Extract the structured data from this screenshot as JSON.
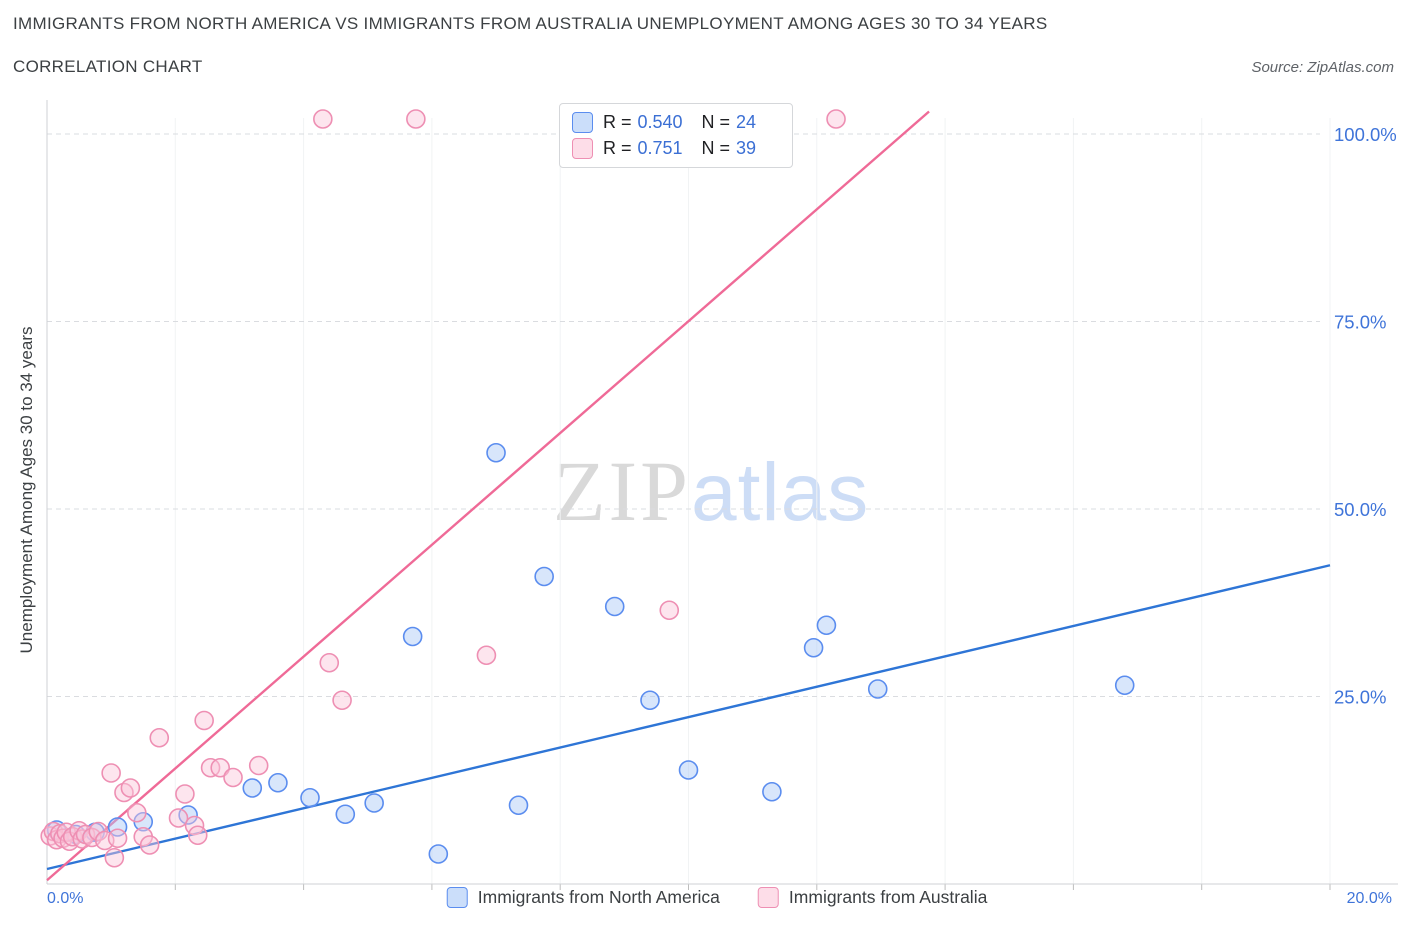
{
  "header": {
    "title_line1": "IMMIGRANTS FROM NORTH AMERICA VS IMMIGRANTS FROM AUSTRALIA UNEMPLOYMENT AMONG AGES 30 TO 34 YEARS",
    "title_line2": "CORRELATION CHART",
    "source": "Source: ZipAtlas.com"
  },
  "watermark": {
    "part1": "ZIP",
    "part2": "atlas"
  },
  "legend_labels": {
    "r": "R =",
    "n": "N ="
  },
  "chart_data": {
    "type": "scatter",
    "title": "Immigrants from North America vs Immigrants from Australia Unemployment Among Ages 30 to 34 years",
    "xlabel": "",
    "ylabel": "Unemployment Among Ages 30 to 34 years",
    "xlim": [
      0,
      20
    ],
    "ylim": [
      0,
      105
    ],
    "grid": "horizontal-dashed",
    "legend_position": "top-center",
    "x_ticks": [
      {
        "value": 0.0,
        "label": "0.0%"
      },
      {
        "value": 20.0,
        "label": "20.0%"
      }
    ],
    "y_ticks": [
      {
        "value": 25,
        "label": "25.0%"
      },
      {
        "value": 50,
        "label": "50.0%"
      },
      {
        "value": 75,
        "label": "75.0%"
      },
      {
        "value": 100,
        "label": "100.0%"
      }
    ],
    "x_minor_step": 2,
    "series": [
      {
        "name": "Immigrants from North America",
        "R": "0.540",
        "N": "24",
        "point_fill": "#a9c8f7",
        "point_stroke": "#5b8def",
        "trend_color": "#2e75d6",
        "trend": {
          "x1": 0,
          "y1": 2.0,
          "x2": 20,
          "y2": 42.5
        },
        "points": [
          [
            0.15,
            7.2
          ],
          [
            0.45,
            6.6
          ],
          [
            0.75,
            6.9
          ],
          [
            1.1,
            7.6
          ],
          [
            1.5,
            8.3
          ],
          [
            2.2,
            9.2
          ],
          [
            3.2,
            12.8
          ],
          [
            3.6,
            13.5
          ],
          [
            4.1,
            11.5
          ],
          [
            4.65,
            9.3
          ],
          [
            5.1,
            10.8
          ],
          [
            5.7,
            33.0
          ],
          [
            6.1,
            4.0
          ],
          [
            7.0,
            57.5
          ],
          [
            7.35,
            10.5
          ],
          [
            7.75,
            41.0
          ],
          [
            8.85,
            37.0
          ],
          [
            9.4,
            24.5
          ],
          [
            10.0,
            15.2
          ],
          [
            11.3,
            12.3
          ],
          [
            11.95,
            31.5
          ],
          [
            12.15,
            34.5
          ],
          [
            12.95,
            26.0
          ],
          [
            16.8,
            26.5
          ]
        ]
      },
      {
        "name": "Immigrants from Australia",
        "R": "0.751",
        "N": "39",
        "point_fill": "#fbc6d9",
        "point_stroke": "#ee8fb3",
        "trend_color": "#ef6a97",
        "trend": {
          "x1": 0,
          "y1": 0.5,
          "x2": 13.75,
          "y2": 103.0
        },
        "points": [
          [
            0.05,
            6.4
          ],
          [
            0.1,
            7.0
          ],
          [
            0.15,
            5.9
          ],
          [
            0.2,
            6.7
          ],
          [
            0.25,
            6.1
          ],
          [
            0.3,
            6.9
          ],
          [
            0.35,
            5.7
          ],
          [
            0.4,
            6.3
          ],
          [
            0.5,
            7.1
          ],
          [
            0.55,
            6.0
          ],
          [
            0.6,
            6.6
          ],
          [
            0.7,
            6.2
          ],
          [
            0.8,
            7.0
          ],
          [
            0.9,
            5.8
          ],
          [
            1.0,
            14.8
          ],
          [
            1.05,
            3.5
          ],
          [
            1.1,
            6.1
          ],
          [
            1.2,
            12.2
          ],
          [
            1.3,
            12.8
          ],
          [
            1.4,
            9.5
          ],
          [
            1.5,
            6.3
          ],
          [
            1.6,
            5.2
          ],
          [
            1.75,
            19.5
          ],
          [
            2.05,
            8.8
          ],
          [
            2.15,
            12.0
          ],
          [
            2.3,
            7.8
          ],
          [
            2.35,
            6.5
          ],
          [
            2.45,
            21.8
          ],
          [
            2.55,
            15.5
          ],
          [
            2.7,
            15.5
          ],
          [
            2.9,
            14.2
          ],
          [
            3.3,
            15.8
          ],
          [
            4.3,
            102.0
          ],
          [
            4.4,
            29.5
          ],
          [
            4.6,
            24.5
          ],
          [
            5.75,
            102.0
          ],
          [
            6.85,
            30.5
          ],
          [
            9.7,
            36.5
          ],
          [
            12.3,
            102.0
          ]
        ]
      }
    ]
  }
}
